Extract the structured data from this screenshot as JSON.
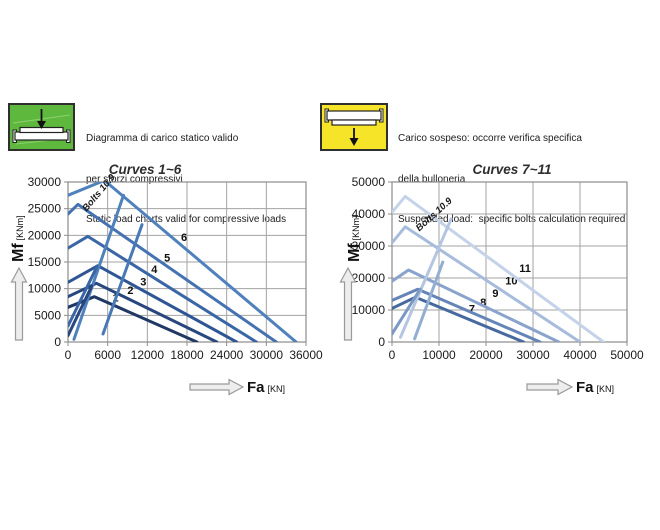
{
  "legends": {
    "static": {
      "box_color": "#5eb83e",
      "lines": [
        "Diagramma di carico statico valido",
        "per sforzi compressivi",
        "Static load charts valid for compressive loads"
      ]
    },
    "suspended": {
      "box_color": "#f5e428",
      "lines": [
        "Carico sospeso: occorre verifica specifica",
        "della bulloneria",
        "Suspended load:  specific bolts calculation required"
      ]
    }
  },
  "chart_data": [
    {
      "id": "curves-1-6",
      "type": "line",
      "title": "Curves 1~6",
      "xlabel": "Fa",
      "xunit": "[KN]",
      "ylabel": "Mf",
      "yunit": "[KNm]",
      "xlim": [
        0,
        36000
      ],
      "ylim": [
        0,
        30000
      ],
      "x_ticks": [
        0,
        6000,
        12000,
        18000,
        24000,
        30000,
        36000
      ],
      "y_ticks": [
        0,
        5000,
        10000,
        15000,
        20000,
        25000,
        30000
      ],
      "grid": true,
      "legend_position": "none",
      "series": [
        {
          "name": "1",
          "color": "#1f3864",
          "points": [
            [
              0,
              6500
            ],
            [
              4000,
              8500
            ],
            [
              19500,
              0
            ]
          ],
          "label": "1",
          "label_at": [
            7200,
            7600
          ]
        },
        {
          "name": "2",
          "color": "#27477e",
          "points": [
            [
              0,
              8500
            ],
            [
              4300,
              11000
            ],
            [
              22500,
              0
            ]
          ],
          "label": "2",
          "label_at": [
            9450,
            9000
          ]
        },
        {
          "name": "3",
          "color": "#2f5694",
          "points": [
            [
              0,
              11200
            ],
            [
              4500,
              14300
            ],
            [
              25500,
              0
            ]
          ],
          "label": "3",
          "label_at": [
            11400,
            10600
          ]
        },
        {
          "name": "4",
          "color": "#3a66a6",
          "points": [
            [
              0,
              17600
            ],
            [
              3000,
              19800
            ],
            [
              28500,
              0
            ]
          ],
          "label": "4",
          "label_at": [
            13050,
            12900
          ]
        },
        {
          "name": "5",
          "color": "#4472b2",
          "points": [
            [
              0,
              24000
            ],
            [
              1500,
              25800
            ],
            [
              31500,
              0
            ]
          ],
          "label": "5",
          "label_at": [
            15000,
            15100
          ]
        },
        {
          "name": "6",
          "color": "#4f81bd",
          "points": [
            [
              0,
              27500
            ],
            [
              5500,
              30300
            ],
            [
              34500,
              0
            ]
          ],
          "label": "6",
          "label_at": [
            17550,
            18900
          ]
        },
        {
          "name": "bolts-limit-main",
          "color": "#4f81bd",
          "points": [
            [
              900,
              500
            ],
            [
              8400,
              27500
            ]
          ],
          "label": "Bolts 10.9",
          "label_at": [
            2800,
            24400
          ],
          "label_rotate": -50
        },
        {
          "name": "bolts-limit-2",
          "color": "#4878b6",
          "points": [
            [
              5300,
              1500
            ],
            [
              11200,
              22000
            ]
          ]
        },
        {
          "name": "bolts-limit-3",
          "color": "#3a66a6",
          "points": [
            [
              0,
              3000
            ],
            [
              4400,
              14200
            ]
          ]
        },
        {
          "name": "bolts-limit-4",
          "color": "#27477e",
          "points": [
            [
              0,
              1200
            ],
            [
              3600,
              10500
            ]
          ]
        }
      ]
    },
    {
      "id": "curves-7-11",
      "type": "line",
      "title": "Curves 7~11",
      "xlabel": "Fa",
      "xunit": "[KN]",
      "ylabel": "Mf",
      "yunit": "[KNm]",
      "xlim": [
        0,
        50000
      ],
      "ylim": [
        0,
        50000
      ],
      "x_ticks": [
        0,
        10000,
        20000,
        30000,
        40000,
        50000
      ],
      "y_ticks": [
        0,
        10000,
        20000,
        30000,
        40000,
        50000
      ],
      "grid": true,
      "legend_position": "none",
      "series": [
        {
          "name": "7",
          "color": "#46699f",
          "points": [
            [
              0,
              10500
            ],
            [
              5000,
              14000
            ],
            [
              28000,
              0
            ]
          ],
          "label": "7",
          "label_at": [
            17000,
            9200
          ]
        },
        {
          "name": "8",
          "color": "#6585b8",
          "points": [
            [
              0,
              13000
            ],
            [
              5500,
              16500
            ],
            [
              31500,
              0
            ]
          ],
          "label": "8",
          "label_at": [
            19400,
            11200
          ]
        },
        {
          "name": "9",
          "color": "#89a3cc",
          "points": [
            [
              0,
              19000
            ],
            [
              3500,
              22500
            ],
            [
              35500,
              0
            ]
          ],
          "label": "9",
          "label_at": [
            22000,
            14000
          ]
        },
        {
          "name": "10",
          "color": "#a7bcdc",
          "points": [
            [
              0,
              31000
            ],
            [
              2800,
              36000
            ],
            [
              40000,
              0
            ]
          ],
          "label": "10",
          "label_at": [
            25400,
            17900
          ]
        },
        {
          "name": "11",
          "color": "#c4d3e9",
          "points": [
            [
              0,
              40500
            ],
            [
              2800,
              45500
            ],
            [
              45000,
              0
            ]
          ],
          "label": "11",
          "label_at": [
            28300,
            21800
          ]
        },
        {
          "name": "bolts-limit-main",
          "color": "#b3c5e2",
          "points": [
            [
              1800,
              1500
            ],
            [
              12600,
              38500
            ]
          ],
          "label": "Bolts 10.9",
          "label_at": [
            5800,
            34500
          ],
          "label_rotate": -42
        },
        {
          "name": "bolts-limit-2",
          "color": "#93aed3",
          "points": [
            [
              4800,
              1000
            ],
            [
              10800,
              25000
            ]
          ]
        },
        {
          "name": "bolts-limit-3",
          "color": "#7b99c4",
          "points": [
            [
              0,
              2500
            ],
            [
              6000,
              16500
            ]
          ]
        }
      ]
    }
  ]
}
